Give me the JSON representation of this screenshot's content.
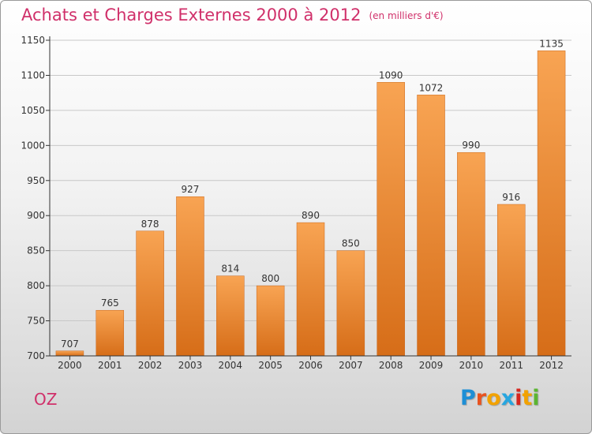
{
  "header": {
    "title": "Achats et Charges Externes 2000 à 2012",
    "subtitle": "(en milliers d'€)"
  },
  "footer": {
    "commune": "OZ",
    "logo": "Proxiti",
    "logo_colors": [
      "#1e8fd6",
      "#e8531f",
      "#f2a200",
      "#27a6e0",
      "#d7261e",
      "#f2a200",
      "#5bb531"
    ]
  },
  "colors": {
    "title": "#d0306a",
    "bar_top": "#f8a453",
    "bar_bottom": "#d66d18",
    "axis": "#333333"
  },
  "chart_data": {
    "type": "bar",
    "categories": [
      "2000",
      "2001",
      "2002",
      "2003",
      "2004",
      "2005",
      "2006",
      "2007",
      "2008",
      "2009",
      "2010",
      "2011",
      "2012"
    ],
    "values": [
      707,
      765,
      878,
      927,
      814,
      800,
      890,
      850,
      1090,
      1072,
      990,
      916,
      1135
    ],
    "data_labels": [
      "707",
      "765",
      "878",
      "927",
      "814",
      "800",
      "890",
      "850",
      "1090",
      "1072",
      "990",
      "916",
      "1135"
    ],
    "yticks": [
      700,
      750,
      800,
      850,
      900,
      950,
      1000,
      1050,
      1100,
      1150
    ],
    "ylim": [
      700,
      1150
    ],
    "grid": true,
    "title": "Achats et Charges Externes 2000 à 2012",
    "xlabel": "",
    "ylabel": ""
  }
}
